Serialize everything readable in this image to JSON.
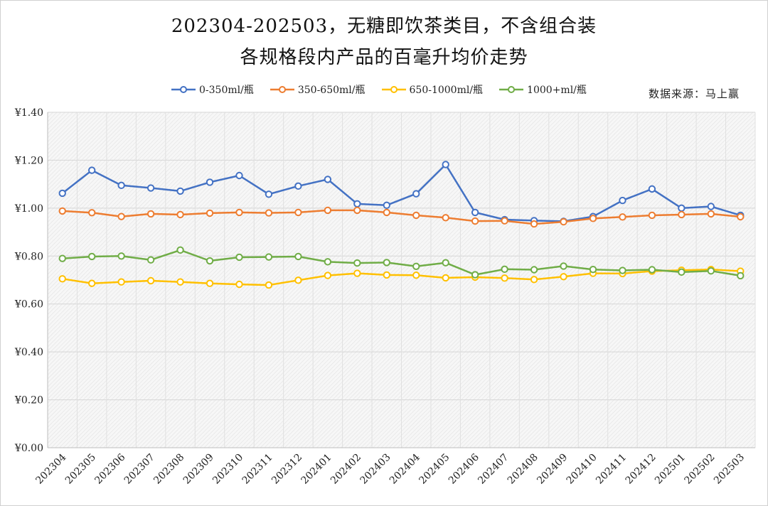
{
  "title_line1": "202304-202503，无糖即饮茶类目，不含组合装",
  "title_line2": "各规格段内产品的百毫升均价走势",
  "source": "数据来源：马上赢",
  "chart_data": {
    "type": "line",
    "x": [
      "202304",
      "202305",
      "202306",
      "202307",
      "202308",
      "202309",
      "202310",
      "202311",
      "202312",
      "202401",
      "202402",
      "202403",
      "202404",
      "202405",
      "202406",
      "202407",
      "202408",
      "202409",
      "202410",
      "202411",
      "202412",
      "202501",
      "202502",
      "202503"
    ],
    "ylim": [
      0,
      1.4
    ],
    "yticks": [
      "¥0.00",
      "¥0.20",
      "¥0.40",
      "¥0.60",
      "¥0.80",
      "¥1.00",
      "¥1.20",
      "¥1.40"
    ],
    "legend_position": "top",
    "grid": true,
    "series": [
      {
        "name": "0-350ml/瓶",
        "color": "#4472C4",
        "values": [
          1.062,
          1.158,
          1.095,
          1.084,
          1.071,
          1.108,
          1.136,
          1.058,
          1.092,
          1.12,
          1.018,
          1.012,
          1.06,
          1.182,
          0.982,
          0.952,
          0.948,
          0.945,
          0.965,
          1.032,
          1.08,
          1.0,
          1.007,
          0.97
        ]
      },
      {
        "name": "350-650ml/瓶",
        "color": "#ED7D31",
        "values": [
          0.988,
          0.981,
          0.965,
          0.976,
          0.973,
          0.979,
          0.982,
          0.98,
          0.982,
          0.991,
          0.991,
          0.982,
          0.97,
          0.96,
          0.946,
          0.947,
          0.934,
          0.943,
          0.957,
          0.963,
          0.97,
          0.973,
          0.976,
          0.964
        ]
      },
      {
        "name": "650-1000ml/瓶",
        "color": "#FFC000",
        "values": [
          0.705,
          0.686,
          0.692,
          0.697,
          0.692,
          0.686,
          0.682,
          0.679,
          0.699,
          0.719,
          0.728,
          0.721,
          0.72,
          0.709,
          0.712,
          0.708,
          0.702,
          0.714,
          0.728,
          0.727,
          0.737,
          0.741,
          0.744,
          0.737
        ]
      },
      {
        "name": "1000+ml/瓶",
        "color": "#70AD47",
        "values": [
          0.79,
          0.798,
          0.8,
          0.784,
          0.825,
          0.78,
          0.795,
          0.796,
          0.798,
          0.776,
          0.771,
          0.773,
          0.757,
          0.772,
          0.722,
          0.745,
          0.743,
          0.758,
          0.744,
          0.74,
          0.743,
          0.733,
          0.738,
          0.718
        ]
      }
    ]
  }
}
